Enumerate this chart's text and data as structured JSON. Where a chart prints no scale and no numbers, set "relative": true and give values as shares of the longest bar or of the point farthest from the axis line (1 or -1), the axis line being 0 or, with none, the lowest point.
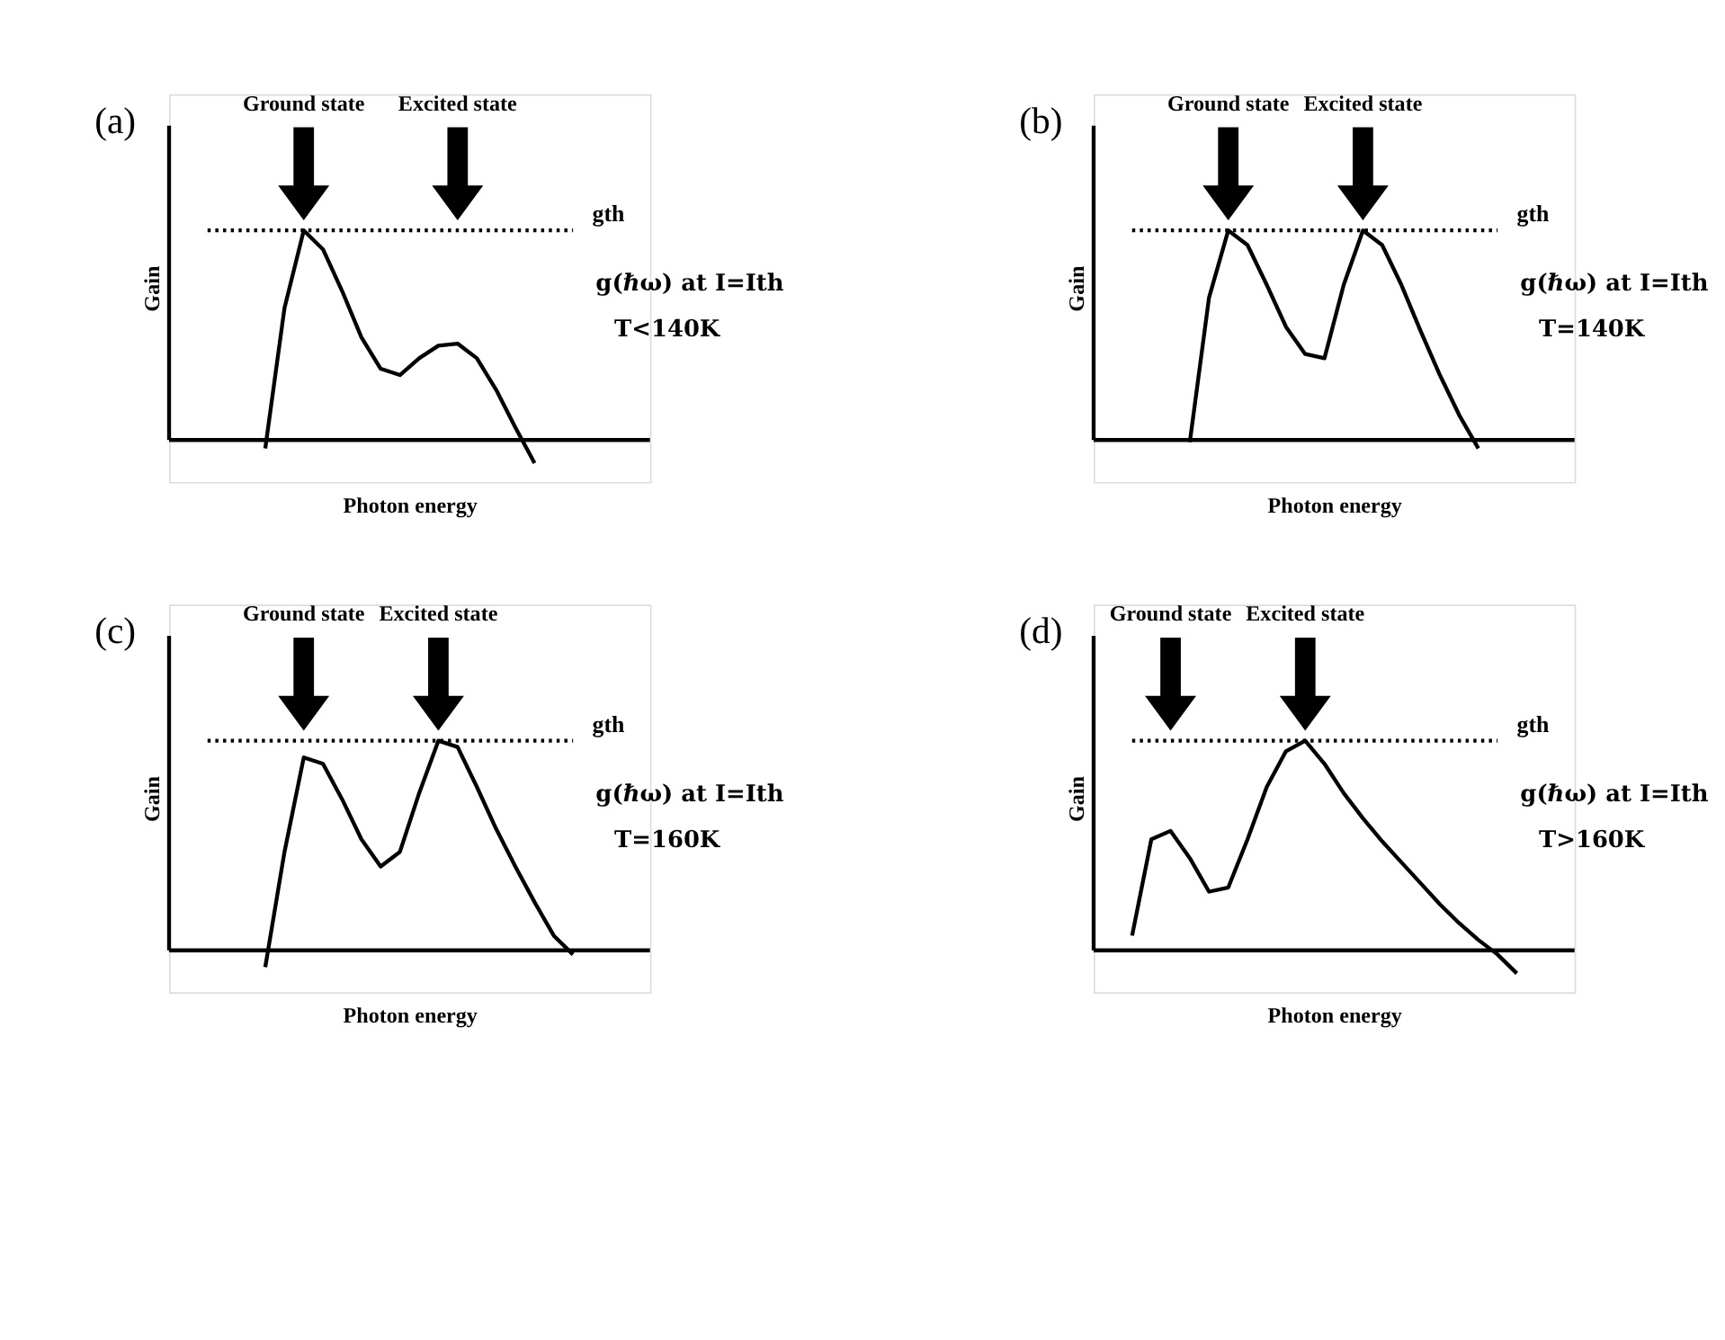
{
  "chart_data": [
    {
      "type": "line",
      "relative": true,
      "xlabel": "Photon energy",
      "ylabel": "Gain",
      "grid": false,
      "categories": [
        null,
        null,
        null,
        null,
        null,
        null,
        null,
        null,
        null,
        null,
        null,
        null,
        null,
        null,
        null,
        null,
        null,
        null,
        null,
        null,
        null,
        null,
        null,
        null,
        null,
        null
      ],
      "series": [
        {
          "color": "#000000",
          "values": [
            null,
            null,
            null,
            null,
            null,
            -0.04,
            0.63,
            1.0,
            0.91,
            0.71,
            0.49,
            0.34,
            0.31,
            0.39,
            0.45,
            0.46,
            0.39,
            0.24,
            0.06,
            -0.11,
            null,
            null,
            null,
            null,
            null,
            null
          ]
        }
      ],
      "ref_lines": [
        {
          "axis": "y",
          "value": 1,
          "label": "gth",
          "line_style": "dotted"
        }
      ],
      "annotations": [
        "(a)",
        "Ground state",
        "Excited state",
        "g(ℏω) at I=Ith",
        "T<140K"
      ]
    },
    {
      "type": "line",
      "relative": true,
      "xlabel": "Photon energy",
      "ylabel": "Gain",
      "grid": false,
      "categories": [
        null,
        null,
        null,
        null,
        null,
        null,
        null,
        null,
        null,
        null,
        null,
        null,
        null,
        null,
        null,
        null,
        null,
        null,
        null,
        null,
        null,
        null,
        null,
        null,
        null,
        null
      ],
      "series": [
        {
          "color": "#000000",
          "values": [
            null,
            null,
            null,
            null,
            null,
            -0.01,
            0.68,
            1.0,
            0.93,
            0.74,
            0.54,
            0.41,
            0.39,
            0.74,
            1.0,
            0.93,
            0.74,
            0.52,
            0.31,
            0.12,
            -0.04,
            null,
            null,
            null,
            null,
            null
          ]
        }
      ],
      "ref_lines": [
        {
          "axis": "y",
          "value": 1,
          "label": "gth",
          "line_style": "dotted"
        }
      ],
      "annotations": [
        "(b)",
        "Ground state",
        "Excited state",
        "g(ℏω) at I=Ith",
        "T=140K"
      ]
    },
    {
      "type": "line",
      "relative": true,
      "xlabel": "Photon energy",
      "ylabel": "Gain",
      "grid": false,
      "categories": [
        null,
        null,
        null,
        null,
        null,
        null,
        null,
        null,
        null,
        null,
        null,
        null,
        null,
        null,
        null,
        null,
        null,
        null,
        null,
        null,
        null,
        null,
        null,
        null,
        null,
        null
      ],
      "series": [
        {
          "color": "#000000",
          "values": [
            null,
            null,
            null,
            null,
            null,
            -0.08,
            0.47,
            0.92,
            0.89,
            0.72,
            0.53,
            0.4,
            0.47,
            0.75,
            1.0,
            0.97,
            0.78,
            0.58,
            0.4,
            0.23,
            0.07,
            -0.02,
            null,
            null,
            null,
            null
          ]
        }
      ],
      "ref_lines": [
        {
          "axis": "y",
          "value": 1,
          "label": "gth",
          "line_style": "dotted"
        }
      ],
      "annotations": [
        "(c)",
        "Ground state",
        "Excited state",
        "g(ℏω) at I=Ith",
        "T=160K"
      ]
    },
    {
      "type": "line",
      "relative": true,
      "xlabel": "Photon energy",
      "ylabel": "Gain",
      "grid": false,
      "categories": [
        null,
        null,
        null,
        null,
        null,
        null,
        null,
        null,
        null,
        null,
        null,
        null,
        null,
        null,
        null,
        null,
        null,
        null,
        null,
        null,
        null,
        null,
        null,
        null,
        null,
        null
      ],
      "series": [
        {
          "color": "#000000",
          "values": [
            null,
            null,
            0.07,
            0.53,
            0.57,
            0.44,
            0.28,
            0.3,
            0.53,
            0.78,
            0.95,
            1.0,
            0.89,
            0.75,
            0.63,
            0.52,
            0.42,
            0.32,
            0.22,
            0.13,
            0.05,
            -0.02,
            -0.11,
            null,
            null,
            null
          ]
        }
      ],
      "ref_lines": [
        {
          "axis": "y",
          "value": 1,
          "label": "gth",
          "line_style": "dotted"
        }
      ],
      "annotations": [
        "(d)",
        "Ground state",
        "Excited state",
        "g(ℏω) at I=Ith",
        "T>160K"
      ]
    }
  ]
}
